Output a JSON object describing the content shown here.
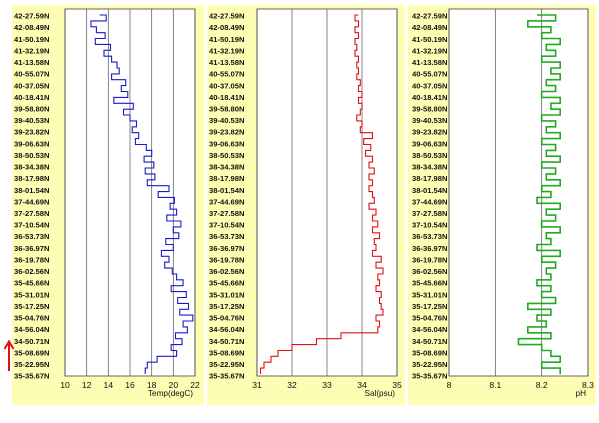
{
  "chart_data": [
    {
      "type": "line",
      "xlabel": "Temp(degC)",
      "xlim": [
        10,
        22
      ],
      "xticks": [
        10,
        12,
        14,
        16,
        18,
        20,
        22
      ],
      "color": "#1a1acc",
      "lat_labels": [
        "42-27.59N",
        "42-08.49N",
        "41-50.19N",
        "41-32.19N",
        "41-13.58N",
        "40-55.07N",
        "40-37.05N",
        "40-18.41N",
        "39-58.80N",
        "39-40.53N",
        "39-23.82N",
        "39-06.63N",
        "38-50.53N",
        "38-34.38N",
        "38-17.98N",
        "38-01.54N",
        "37-44.69N",
        "37-27.58N",
        "37-10.54N",
        "36-53.73N",
        "36-36.97N",
        "36-19.78N",
        "36-02.56N",
        "35-45.66N",
        "35-31.01N",
        "35-17.25N",
        "35-04.76N",
        "34-56.04N",
        "34-50.71N",
        "35-08.69N",
        "35-22.95N",
        "35-35.67N"
      ],
      "series": [
        {
          "values": [
            13.2,
            13.8,
            12.4,
            12.9,
            13.7,
            12.8,
            14.2,
            13.6,
            14.3,
            14.8,
            15.0,
            14.3,
            15.6,
            15.2,
            15.8,
            14.5,
            16.3,
            15.4,
            16.0,
            16.6,
            16.2,
            16.8,
            16.5,
            17.5,
            18.0,
            17.3,
            18.2,
            17.4,
            18.3,
            17.6,
            19.6,
            18.6,
            20.1,
            19.7,
            20.3,
            19.4,
            20.7,
            20.0,
            20.5,
            19.3,
            20.0,
            18.9,
            19.6,
            19.2,
            19.9,
            20.3,
            20.9,
            19.8,
            21.2,
            20.4,
            21.4,
            20.6,
            21.8,
            20.9,
            21.3,
            20.2,
            20.8,
            19.8,
            20.3,
            18.5,
            17.6,
            17.4
          ]
        }
      ]
    },
    {
      "type": "line",
      "xlabel": "Sal(psu)",
      "xlim": [
        31,
        35
      ],
      "xticks": [
        31,
        32,
        33,
        34,
        35
      ],
      "color": "#dd1111",
      "lat_labels": [
        "42-27.59N",
        "42-08.49N",
        "41-50.19N",
        "41-32.19N",
        "41-13.58N",
        "40-55.07N",
        "40-37.05N",
        "40-18.41N",
        "39-58.80N",
        "39-40.53N",
        "39-23.82N",
        "39-06.63N",
        "38-50.53N",
        "38-34.38N",
        "38-17.98N",
        "38-01.54N",
        "37-44.69N",
        "37-27.58N",
        "37-10.54N",
        "36-53.73N",
        "36-36.97N",
        "36-19.78N",
        "36-02.56N",
        "35-45.66N",
        "35-31.01N",
        "35-17.25N",
        "35-04.76N",
        "34-56.04N",
        "34-50.71N",
        "35-08.69N",
        "35-22.95N",
        "35-35.67N"
      ],
      "series": [
        {
          "values": [
            33.9,
            33.8,
            33.9,
            33.8,
            33.9,
            33.8,
            33.85,
            33.8,
            33.9,
            33.85,
            33.9,
            33.85,
            33.95,
            33.9,
            34.0,
            33.9,
            34.0,
            33.95,
            33.85,
            34.0,
            33.95,
            34.3,
            34.05,
            34.25,
            34.1,
            34.3,
            34.2,
            34.35,
            34.2,
            34.3,
            34.2,
            34.3,
            34.35,
            34.2,
            34.4,
            34.3,
            34.45,
            34.3,
            34.5,
            34.35,
            34.4,
            34.3,
            34.55,
            34.4,
            34.6,
            34.45,
            34.5,
            34.4,
            34.55,
            34.5,
            34.55,
            34.6,
            34.4,
            34.5,
            34.45,
            33.4,
            32.7,
            32.0,
            31.6,
            31.4,
            31.2,
            31.1
          ]
        }
      ]
    },
    {
      "type": "line",
      "xlabel": "pH",
      "xlim": [
        8,
        8.3
      ],
      "xticks": [
        "8",
        "8.1",
        "8.2",
        "8.3"
      ],
      "color": "#22aa22",
      "lat_labels": [
        "42-27.59N",
        "42-08.49N",
        "41-50.19N",
        "41-32.19N",
        "41-13.58N",
        "40-55.07N",
        "40-37.05N",
        "40-18.41N",
        "39-58.80N",
        "39-40.53N",
        "39-23.82N",
        "39-06.63N",
        "38-50.53N",
        "38-34.38N",
        "38-17.98N",
        "38-01.54N",
        "37-44.69N",
        "37-27.58N",
        "37-10.54N",
        "36-53.73N",
        "36-36.97N",
        "36-19.78N",
        "36-02.56N",
        "35-45.66N",
        "35-31.01N",
        "35-17.25N",
        "35-04.76N",
        "34-56.04N",
        "34-50.71N",
        "35-08.69N",
        "35-22.95N",
        "35-35.67N"
      ],
      "series": [
        {
          "values": [
            8.19,
            8.23,
            8.17,
            8.22,
            8.2,
            8.24,
            8.21,
            8.23,
            8.2,
            8.24,
            8.22,
            8.24,
            8.21,
            8.23,
            8.2,
            8.24,
            8.22,
            8.24,
            8.2,
            8.23,
            8.21,
            8.24,
            8.2,
            8.23,
            8.21,
            8.24,
            8.2,
            8.23,
            8.21,
            8.24,
            8.2,
            8.22,
            8.19,
            8.24,
            8.21,
            8.23,
            8.2,
            8.24,
            8.21,
            8.22,
            8.19,
            8.24,
            8.2,
            8.23,
            8.21,
            8.22,
            8.19,
            8.22,
            8.2,
            8.23,
            8.17,
            8.22,
            8.19,
            8.21,
            8.17,
            8.22,
            8.15,
            8.2,
            8.22,
            8.24,
            8.2,
            8.24
          ]
        }
      ]
    }
  ]
}
